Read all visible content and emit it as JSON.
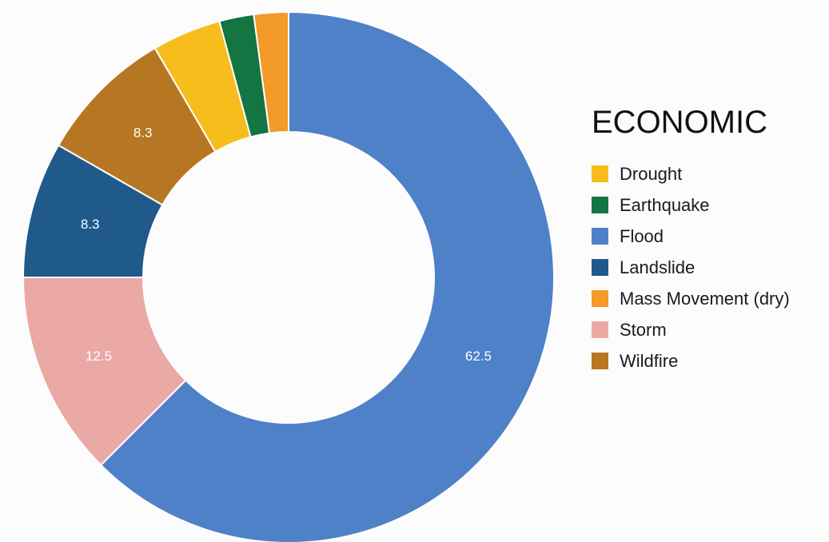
{
  "chart_data": {
    "type": "pie",
    "donut": true,
    "title": "ECONOMIC",
    "legend_position": "right",
    "start_angle_deg": 0,
    "direction": "clockwise",
    "slices": [
      {
        "name": "Flood",
        "value": 62.5,
        "label": "62.5",
        "color": "#4f81c8"
      },
      {
        "name": "Storm",
        "value": 12.5,
        "label": "12.5",
        "color": "#eba9a6"
      },
      {
        "name": "Landslide",
        "value": 8.3,
        "label": "8.3",
        "color": "#1f5a8b"
      },
      {
        "name": "Wildfire",
        "value": 8.3,
        "label": "8.3",
        "color": "#b77722"
      },
      {
        "name": "Drought",
        "value": 4.2,
        "label": "",
        "color": "#f7bd1c"
      },
      {
        "name": "Earthquake",
        "value": 2.1,
        "label": "",
        "color": "#137541"
      },
      {
        "name": "Mass Movement (dry)",
        "value": 2.1,
        "label": "",
        "color": "#f39a2a"
      }
    ],
    "legend": [
      {
        "name": "Drought",
        "color": "#f7bd1c"
      },
      {
        "name": "Earthquake",
        "color": "#137541"
      },
      {
        "name": "Flood",
        "color": "#4f81c8"
      },
      {
        "name": "Landslide",
        "color": "#1f5a8b"
      },
      {
        "name": "Mass Movement (dry)",
        "color": "#f39a2a"
      },
      {
        "name": "Storm",
        "color": "#eba9a6"
      },
      {
        "name": "Wildfire",
        "color": "#b77722"
      }
    ]
  }
}
